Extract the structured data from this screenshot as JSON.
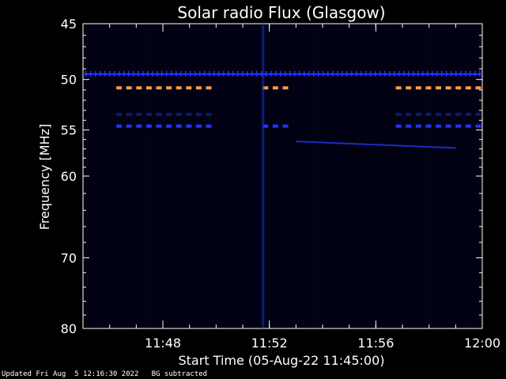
{
  "chart_data": {
    "type": "heatmap",
    "title": "Solar radio Flux (Glasgow)",
    "xlabel": "Start Time (05-Aug-22 11:45:00)",
    "ylabel": "Frequency [MHz]",
    "x_start": "11:45",
    "x_end": "12:00",
    "x_ticks": [
      "11:48",
      "11:52",
      "11:56",
      "12:00"
    ],
    "y_ticks": [
      45,
      50,
      55,
      60,
      70,
      80
    ],
    "y_range": [
      45,
      80
    ],
    "y_scale": "log",
    "background_color": "#000010",
    "features": [
      {
        "kind": "dashed-band",
        "frequency": 50.8,
        "color": "#ff9a4d",
        "segments": [
          [
            "11:46:15",
            "11:50:00"
          ],
          [
            "11:51:45",
            "11:53:00"
          ],
          [
            "11:56:45",
            "12:00:00"
          ]
        ]
      },
      {
        "kind": "dashed-band",
        "frequency": 54.6,
        "color": "#2233ff",
        "segments": [
          [
            "11:46:15",
            "11:50:00"
          ],
          [
            "11:51:45",
            "11:53:00"
          ],
          [
            "11:56:45",
            "12:00:00"
          ]
        ]
      },
      {
        "kind": "dashed-band",
        "frequency": 53.4,
        "color": "#101a66",
        "segments": [
          [
            "11:46:15",
            "11:50:00"
          ],
          [
            "11:56:45",
            "12:00:00"
          ]
        ]
      },
      {
        "kind": "continuous-line",
        "frequency": 49.5,
        "color": "#2a33ff",
        "segments": [
          [
            "11:45:00",
            "12:00:00"
          ]
        ]
      },
      {
        "kind": "drift-line",
        "color": "#1a2cc0",
        "from": [
          "11:53:00",
          56.2
        ],
        "to": [
          "11:59:00",
          56.9
        ]
      },
      {
        "kind": "vertical-burst",
        "time": "11:51:45",
        "color": "#1a33cc",
        "freq_range": [
          45,
          80
        ]
      }
    ]
  },
  "footer": {
    "updated": "Updated Fri Aug  5 12:16:30 2022",
    "bg_note": "BG subtracted"
  }
}
